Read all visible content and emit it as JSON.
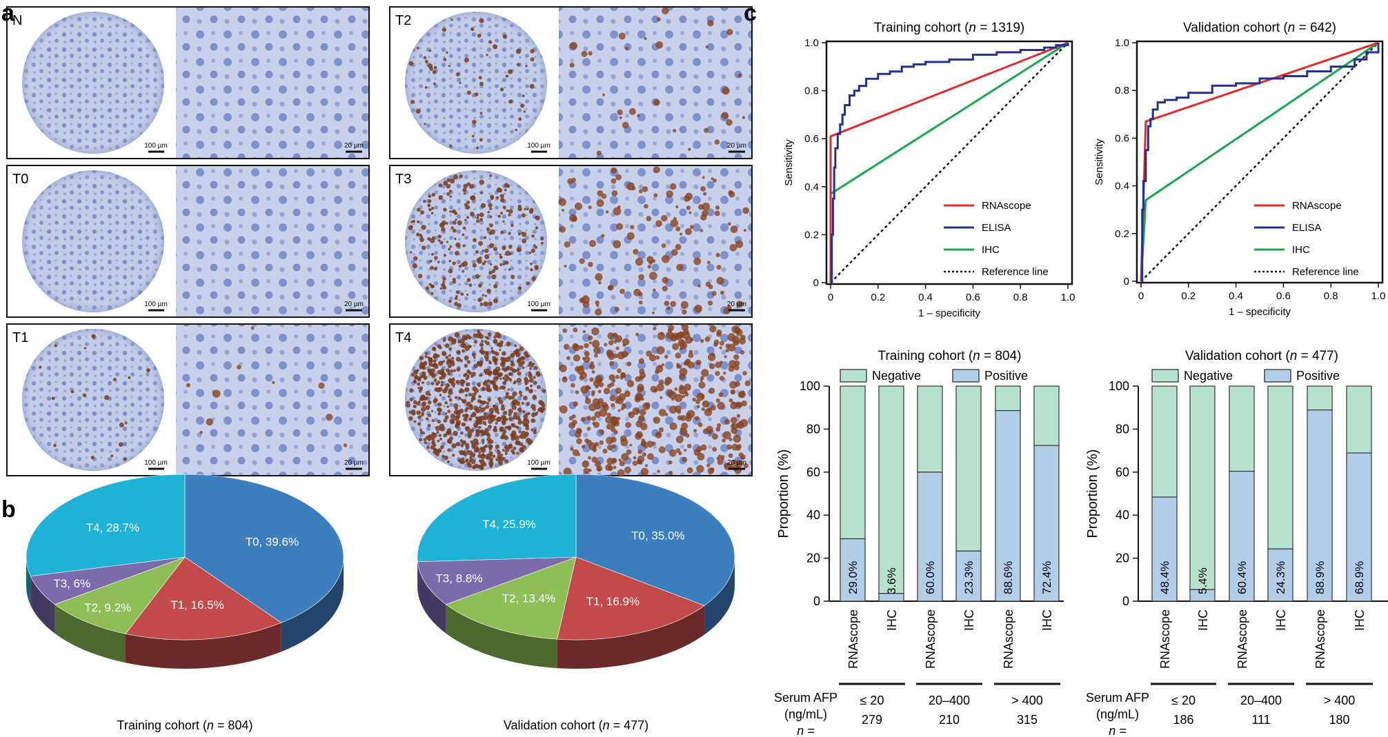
{
  "panel_letters": {
    "a": "a",
    "b": "b",
    "c": "c"
  },
  "histology": {
    "tiles": [
      {
        "label": "N",
        "scale_left": "100 µm",
        "scale_right": "20 µm",
        "stain_level": 0.0
      },
      {
        "label": "T0",
        "scale_left": "100 µm",
        "scale_right": "20 µm",
        "stain_level": 0.0
      },
      {
        "label": "T1",
        "scale_left": "100 µm",
        "scale_right": "20 µm",
        "stain_level": 0.02
      },
      {
        "label": "T2",
        "scale_left": "100 µm",
        "scale_right": "20 µm",
        "stain_level": 0.06
      },
      {
        "label": "T3",
        "scale_left": "100 µm",
        "scale_right": "20 µm",
        "stain_level": 0.25
      },
      {
        "label": "T4",
        "scale_left": "100 µm",
        "scale_right": "20 µm",
        "stain_level": 0.85
      }
    ]
  },
  "pies": {
    "colors": {
      "T0": "#3d7ebf",
      "T1": "#c24a4a",
      "T2": "#8fbd58",
      "T3": "#7b6aac",
      "T4": "#1eb3d6"
    },
    "items": [
      {
        "caption_prefix": "Training cohort (",
        "caption_n": "n",
        "caption_suffix": " = 804)",
        "slices": [
          {
            "key": "T0",
            "value": 39.6,
            "label": "T0, 39.6%"
          },
          {
            "key": "T1",
            "value": 16.5,
            "label": "T1, 16.5%"
          },
          {
            "key": "T2",
            "value": 9.2,
            "label": "T2, 9.2%"
          },
          {
            "key": "T3",
            "value": 6.0,
            "label": "T3, 6%"
          },
          {
            "key": "T4",
            "value": 28.7,
            "label": "T4, 28.7%"
          }
        ]
      },
      {
        "caption_prefix": "Validation cohort (",
        "caption_n": "n",
        "caption_suffix": " = 477)",
        "slices": [
          {
            "key": "T0",
            "value": 35.0,
            "label": "T0, 35.0%"
          },
          {
            "key": "T1",
            "value": 16.9,
            "label": "T1, 16.9%"
          },
          {
            "key": "T2",
            "value": 13.4,
            "label": "T2, 13.4%"
          },
          {
            "key": "T3",
            "value": 8.8,
            "label": "T3, 8.8%"
          },
          {
            "key": "T4",
            "value": 25.9,
            "label": "T4, 25.9%"
          }
        ]
      }
    ]
  },
  "roc_legend": [
    "RNAscope",
    "ELISA",
    "IHC",
    "Reference line"
  ],
  "bar_common": {
    "ylabel": "Proportion (%)",
    "legend": [
      "Negative",
      "Positive"
    ],
    "neg_color": "#b7e2cf",
    "pos_color": "#b3cde9",
    "bar_labels": [
      "RNAscope",
      "IHC",
      "RNAscope",
      "IHC",
      "RNAscope",
      "IHC"
    ],
    "serum_label_1": "Serum AFP",
    "serum_label_2": "(ng/mL)",
    "n_label": "n =",
    "groups": [
      "≤ 20",
      "20–400",
      "> 400"
    ]
  },
  "chart_data": [
    {
      "type": "pie",
      "title": "Training cohort (n = 804)",
      "categories": [
        "T0",
        "T1",
        "T2",
        "T3",
        "T4"
      ],
      "values": [
        39.6,
        16.5,
        9.2,
        6.0,
        28.7
      ]
    },
    {
      "type": "pie",
      "title": "Validation cohort (n = 477)",
      "categories": [
        "T0",
        "T1",
        "T2",
        "T3",
        "T4"
      ],
      "values": [
        35.0,
        16.9,
        13.4,
        8.8,
        25.9
      ]
    },
    {
      "type": "line",
      "title_prefix": "Training cohort (",
      "title_n": "n",
      "title_suffix": " = 1319)",
      "xlabel": "1 – specificity",
      "ylabel": "Sensitivity",
      "xlim": [
        0,
        1
      ],
      "ylim": [
        0,
        1
      ],
      "ticks": [
        "0",
        "0.2",
        "0.4",
        "0.6",
        "0.8",
        "1.0"
      ],
      "legend": "bottom-right",
      "series": [
        {
          "name": "RNAscope",
          "color": "#e8262a",
          "x": [
            0,
            0,
            1
          ],
          "y": [
            0,
            0.61,
            1
          ]
        },
        {
          "name": "ELISA",
          "color": "#23308f",
          "x": [
            0,
            0.005,
            0.01,
            0.015,
            0.02,
            0.03,
            0.04,
            0.05,
            0.06,
            0.08,
            0.1,
            0.12,
            0.15,
            0.2,
            0.25,
            0.3,
            0.35,
            0.4,
            0.5,
            0.6,
            0.7,
            0.8,
            0.9,
            0.95,
            1.0
          ],
          "y": [
            0,
            0.2,
            0.35,
            0.48,
            0.56,
            0.62,
            0.66,
            0.7,
            0.74,
            0.78,
            0.8,
            0.82,
            0.85,
            0.87,
            0.88,
            0.9,
            0.91,
            0.92,
            0.93,
            0.95,
            0.96,
            0.97,
            0.98,
            0.99,
            1.0
          ]
        },
        {
          "name": "IHC",
          "color": "#16a84a",
          "x": [
            0,
            0,
            1
          ],
          "y": [
            0,
            0.37,
            1
          ]
        },
        {
          "name": "Reference line",
          "color": "#111111",
          "x": [
            0,
            1
          ],
          "y": [
            0,
            1
          ]
        }
      ]
    },
    {
      "type": "line",
      "title_prefix": "Validation cohort (",
      "title_n": "n",
      "title_suffix": " = 642)",
      "xlabel": "1 – specificity",
      "ylabel": "Sensitivity",
      "xlim": [
        0,
        1
      ],
      "ylim": [
        0,
        1
      ],
      "ticks": [
        "0",
        "0.2",
        "0.4",
        "0.6",
        "0.8",
        "1.0"
      ],
      "legend": "bottom-right",
      "series": [
        {
          "name": "RNAscope",
          "color": "#e8262a",
          "x": [
            0,
            0.02,
            1
          ],
          "y": [
            0,
            0.67,
            1
          ]
        },
        {
          "name": "ELISA",
          "color": "#23308f",
          "x": [
            0,
            0.005,
            0.01,
            0.02,
            0.03,
            0.04,
            0.05,
            0.07,
            0.1,
            0.15,
            0.2,
            0.3,
            0.4,
            0.5,
            0.6,
            0.7,
            0.8,
            0.9,
            0.95,
            1.0
          ],
          "y": [
            0,
            0.3,
            0.42,
            0.55,
            0.65,
            0.68,
            0.72,
            0.75,
            0.76,
            0.77,
            0.79,
            0.82,
            0.83,
            0.85,
            0.86,
            0.88,
            0.9,
            0.93,
            0.96,
            1.0
          ]
        },
        {
          "name": "IHC",
          "color": "#16a84a",
          "x": [
            0,
            0.02,
            1
          ],
          "y": [
            0,
            0.34,
            1
          ]
        },
        {
          "name": "Reference line",
          "color": "#111111",
          "x": [
            0,
            1
          ],
          "y": [
            0,
            1
          ]
        }
      ]
    },
    {
      "type": "bar",
      "stacked": true,
      "title_prefix": "Training cohort (",
      "title_n": "n",
      "title_suffix": " = 804)",
      "ylabel": "Proportion (%)",
      "ylim": [
        0,
        100
      ],
      "yticks": [
        0,
        20,
        40,
        60,
        80,
        100
      ],
      "categories": [
        "RNAscope",
        "IHC",
        "RNAscope",
        "IHC",
        "RNAscope",
        "IHC"
      ],
      "groups": [
        "≤ 20",
        "20–400",
        "> 400"
      ],
      "group_n": [
        "279",
        "210",
        "315"
      ],
      "series": [
        {
          "name": "Positive",
          "values": [
            29.0,
            3.6,
            60.0,
            23.3,
            88.6,
            72.4
          ]
        },
        {
          "name": "Negative",
          "values": [
            71.0,
            96.4,
            40.0,
            76.7,
            11.4,
            27.6
          ]
        }
      ],
      "data_labels": [
        "29.0%",
        "3.6%",
        "60.0%",
        "23.3%",
        "88.6%",
        "72.4%"
      ]
    },
    {
      "type": "bar",
      "stacked": true,
      "title_prefix": "Validation cohort (",
      "title_n": "n",
      "title_suffix": " = 477)",
      "ylabel": "Proportion (%)",
      "ylim": [
        0,
        100
      ],
      "yticks": [
        0,
        20,
        40,
        60,
        80,
        100
      ],
      "categories": [
        "RNAscope",
        "IHC",
        "RNAscope",
        "IHC",
        "RNAscope",
        "IHC"
      ],
      "groups": [
        "≤ 20",
        "20–400",
        "> 400"
      ],
      "group_n": [
        "186",
        "111",
        "180"
      ],
      "series": [
        {
          "name": "Positive",
          "values": [
            48.4,
            5.4,
            60.4,
            24.3,
            88.9,
            68.9
          ]
        },
        {
          "name": "Negative",
          "values": [
            51.6,
            94.6,
            39.6,
            75.7,
            11.1,
            31.1
          ]
        }
      ],
      "data_labels": [
        "48.4%",
        "5.4%",
        "60.4%",
        "24.3%",
        "88.9%",
        "68.9%"
      ]
    }
  ]
}
